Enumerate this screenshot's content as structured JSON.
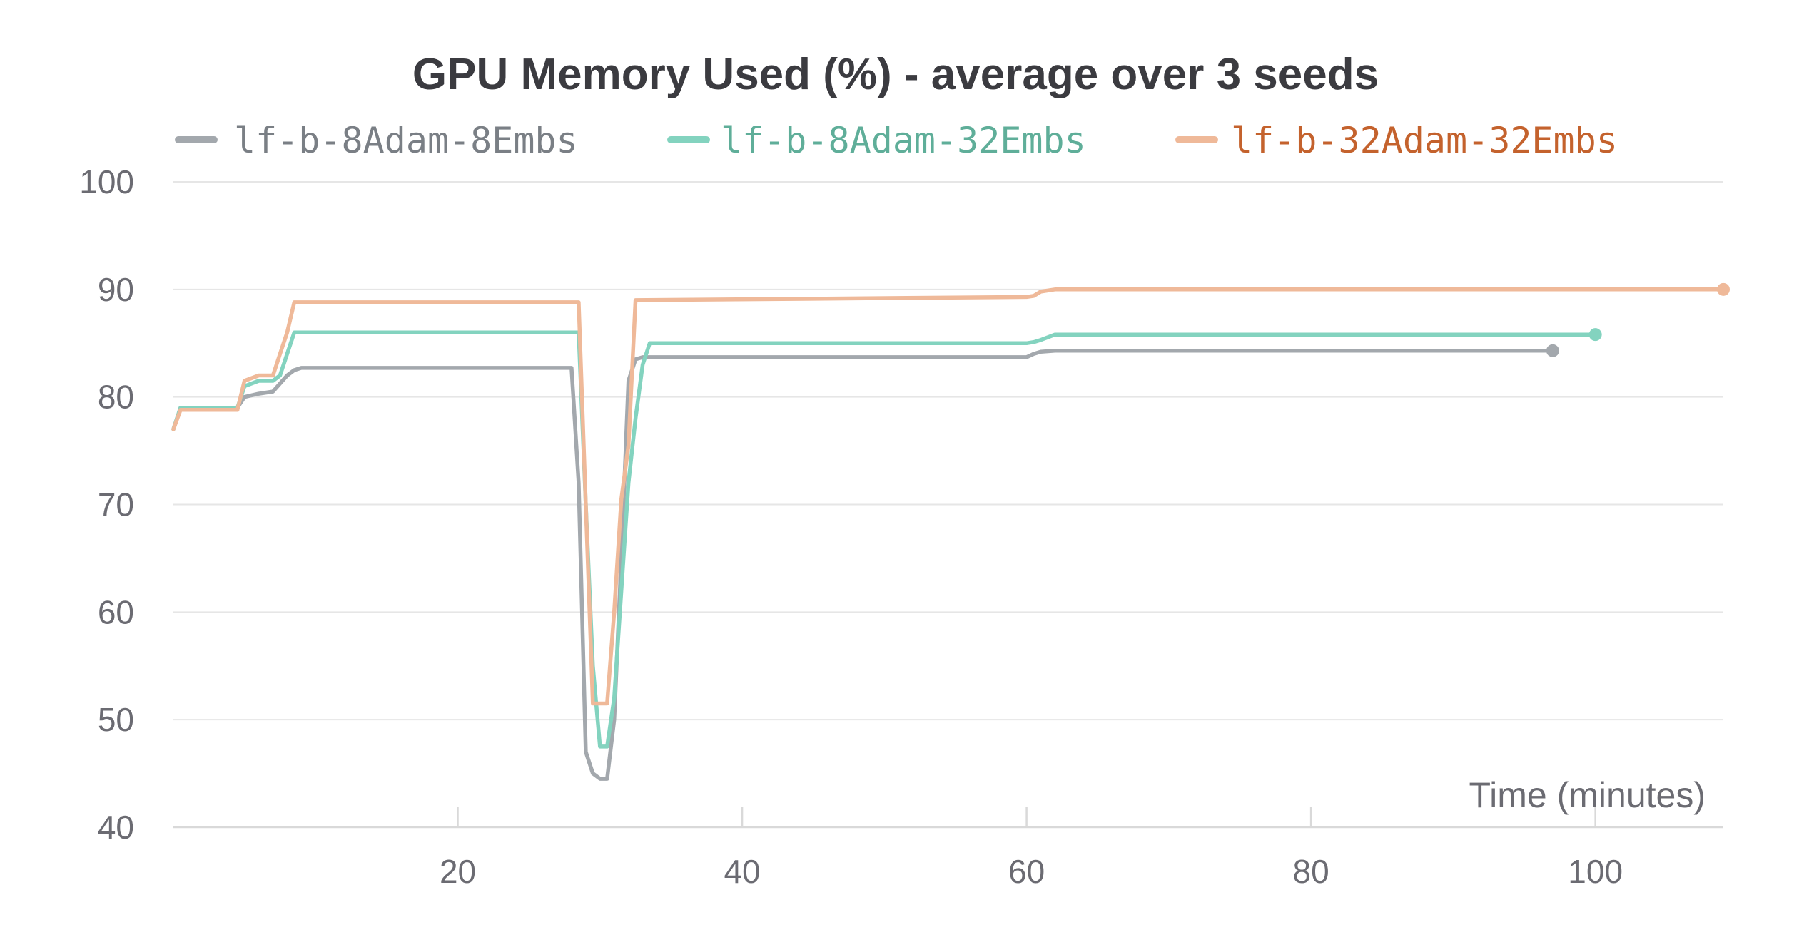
{
  "chart_data": {
    "type": "line",
    "title": "GPU Memory Used (%) - average over 3 seeds",
    "xlabel": "Time (minutes)",
    "ylabel": "",
    "xlim": [
      0,
      109
    ],
    "ylim": [
      40,
      100
    ],
    "xticks": [
      20,
      40,
      60,
      80,
      100
    ],
    "yticks": [
      40,
      50,
      60,
      70,
      80,
      90,
      100
    ],
    "grid": true,
    "legend_position": "top",
    "series": [
      {
        "name": "lf-b-8Adam-8Embs",
        "color": "#a3a8ad",
        "legend_text_color": "#7a7f85",
        "x": [
          0,
          0.5,
          4,
          4.5,
          5,
          6,
          7,
          8,
          8.5,
          9,
          28,
          28.5,
          29,
          29.5,
          30,
          30.5,
          31,
          31.5,
          32,
          32.5,
          33,
          60,
          60.5,
          61,
          62,
          97
        ],
        "y": [
          77,
          79,
          79,
          79,
          80,
          80.3,
          80.5,
          82,
          82.5,
          82.7,
          82.7,
          72,
          47,
          45,
          44.5,
          44.5,
          50,
          65,
          81.5,
          83.5,
          83.7,
          83.7,
          84,
          84.2,
          84.3,
          84.3
        ]
      },
      {
        "name": "lf-b-8Adam-32Embs",
        "color": "#83d3bf",
        "legend_text_color": "#5fae99",
        "x": [
          0,
          0.5,
          4,
          4.5,
          5,
          6,
          7,
          7.5,
          8,
          8.5,
          28,
          28.5,
          29,
          29.5,
          30,
          30.5,
          31,
          31.5,
          32,
          32.5,
          33,
          33.5,
          60,
          60.5,
          61,
          62,
          100
        ],
        "y": [
          77,
          79,
          79,
          79,
          81,
          81.5,
          81.5,
          82,
          84,
          86,
          86,
          86,
          70,
          55,
          47.5,
          47.5,
          52,
          62,
          72,
          78,
          83,
          85,
          85,
          85.1,
          85.3,
          85.8,
          85.8
        ]
      },
      {
        "name": "lf-b-32Adam-32Embs",
        "color": "#efb999",
        "legend_text_color": "#c4622d",
        "x": [
          0,
          0.5,
          4,
          4.5,
          5,
          6,
          7,
          7.5,
          8,
          8.5,
          28,
          28.5,
          29,
          29.5,
          30,
          30.5,
          31,
          31.5,
          32,
          32.5,
          60,
          60.5,
          61,
          62,
          109
        ],
        "y": [
          77,
          78.8,
          78.8,
          78.8,
          81.5,
          82,
          82,
          84,
          86,
          88.8,
          88.8,
          88.8,
          70,
          51.5,
          51.5,
          51.5,
          60,
          70.5,
          75.5,
          89,
          89.3,
          89.4,
          89.8,
          90,
          90
        ]
      }
    ]
  }
}
